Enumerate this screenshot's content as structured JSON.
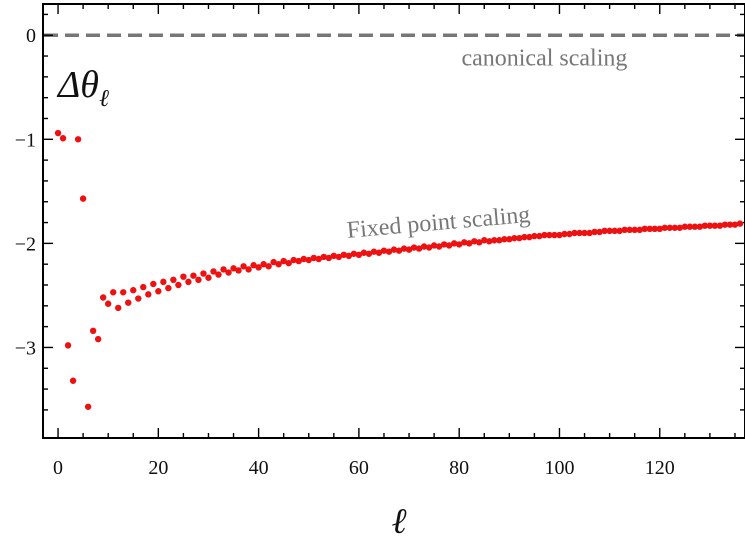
{
  "chart_data": {
    "type": "scatter",
    "title": "",
    "xlabel": "ℓ",
    "ylabel": "Δθ_ℓ",
    "ylabel_main": "Δθ",
    "ylabel_sub": "ℓ",
    "xlim": [
      -3,
      137
    ],
    "ylim": [
      -3.87,
      0.3
    ],
    "xticks": [
      0,
      20,
      40,
      60,
      80,
      100,
      120
    ],
    "xtick_labels": [
      "0",
      "20",
      "40",
      "60",
      "80",
      "100",
      "120"
    ],
    "yticks": [
      0,
      -1,
      -2,
      -3
    ],
    "ytick_labels": [
      "0",
      "−1",
      "−2",
      "−3"
    ],
    "grid": false,
    "reference_line": {
      "y": 0,
      "color": "#777777",
      "style": "dashed",
      "label": "canonical scaling"
    },
    "annotations": [
      {
        "text": "canonical scaling",
        "x": 97,
        "y": -0.29
      },
      {
        "text": "Fixed point scaling",
        "x": 76,
        "y": -1.87,
        "rotation_deg": -5
      }
    ],
    "series": [
      {
        "color": "#ee1111",
        "points": [
          [
            0,
            -0.94
          ],
          [
            1,
            -0.99
          ],
          [
            2,
            -2.98
          ],
          [
            3,
            -3.32
          ],
          [
            4,
            -1.0
          ],
          [
            5,
            -1.57
          ],
          [
            6,
            -3.57
          ],
          [
            7,
            -2.84
          ],
          [
            8,
            -2.92
          ],
          [
            9,
            -2.52
          ],
          [
            10,
            -2.58
          ],
          [
            11,
            -2.47
          ],
          [
            12,
            -2.62
          ],
          [
            13,
            -2.47
          ],
          [
            14,
            -2.57
          ],
          [
            15,
            -2.45
          ],
          [
            16,
            -2.53
          ],
          [
            17,
            -2.42
          ],
          [
            18,
            -2.49
          ],
          [
            19,
            -2.39
          ],
          [
            20,
            -2.46
          ],
          [
            21,
            -2.37
          ],
          [
            22,
            -2.43
          ],
          [
            23,
            -2.35
          ],
          [
            24,
            -2.4
          ],
          [
            25,
            -2.32
          ],
          [
            26,
            -2.37
          ],
          [
            27,
            -2.31
          ],
          [
            28,
            -2.35
          ],
          [
            29,
            -2.29
          ],
          [
            30,
            -2.33
          ],
          [
            31,
            -2.27
          ],
          [
            32,
            -2.3
          ],
          [
            33,
            -2.25
          ],
          [
            34,
            -2.28
          ],
          [
            35,
            -2.24
          ],
          [
            36,
            -2.26
          ],
          [
            37,
            -2.22
          ],
          [
            38,
            -2.25
          ],
          [
            39,
            -2.21
          ],
          [
            40,
            -2.23
          ],
          [
            41,
            -2.2
          ],
          [
            42,
            -2.22
          ],
          [
            43,
            -2.18
          ],
          [
            44,
            -2.2
          ],
          [
            45,
            -2.17
          ],
          [
            46,
            -2.19
          ],
          [
            47,
            -2.16
          ],
          [
            48,
            -2.17
          ],
          [
            49,
            -2.15
          ],
          [
            50,
            -2.16
          ],
          [
            51,
            -2.14
          ],
          [
            52,
            -2.15
          ],
          [
            53,
            -2.13
          ],
          [
            54,
            -2.14
          ],
          [
            55,
            -2.12
          ],
          [
            56,
            -2.13
          ],
          [
            57,
            -2.11
          ],
          [
            58,
            -2.12
          ],
          [
            59,
            -2.1
          ],
          [
            60,
            -2.11
          ],
          [
            61,
            -2.09
          ],
          [
            62,
            -2.1
          ],
          [
            63,
            -2.08
          ],
          [
            64,
            -2.09
          ],
          [
            65,
            -2.07
          ],
          [
            66,
            -2.08
          ],
          [
            67,
            -2.06
          ],
          [
            68,
            -2.07
          ],
          [
            69,
            -2.05
          ],
          [
            70,
            -2.06
          ],
          [
            71,
            -2.04
          ],
          [
            72,
            -2.05
          ],
          [
            73,
            -2.03
          ],
          [
            74,
            -2.04
          ],
          [
            75,
            -2.02
          ],
          [
            76,
            -2.03
          ],
          [
            77,
            -2.01
          ],
          [
            78,
            -2.02
          ],
          [
            79,
            -2.0
          ],
          [
            80,
            -2.01
          ],
          [
            81,
            -1.99
          ],
          [
            82,
            -2.0
          ],
          [
            83,
            -1.98
          ],
          [
            84,
            -1.99
          ],
          [
            85,
            -1.97
          ],
          [
            86,
            -1.98
          ],
          [
            87,
            -1.97
          ],
          [
            88,
            -1.97
          ],
          [
            89,
            -1.96
          ],
          [
            90,
            -1.96
          ],
          [
            91,
            -1.95
          ],
          [
            92,
            -1.95
          ],
          [
            93,
            -1.94
          ],
          [
            94,
            -1.94
          ],
          [
            95,
            -1.93
          ],
          [
            96,
            -1.93
          ],
          [
            97,
            -1.92
          ],
          [
            98,
            -1.92
          ],
          [
            99,
            -1.92
          ],
          [
            100,
            -1.92
          ],
          [
            101,
            -1.91
          ],
          [
            102,
            -1.91
          ],
          [
            103,
            -1.9
          ],
          [
            104,
            -1.9
          ],
          [
            105,
            -1.9
          ],
          [
            106,
            -1.9
          ],
          [
            107,
            -1.89
          ],
          [
            108,
            -1.89
          ],
          [
            109,
            -1.88
          ],
          [
            110,
            -1.88
          ],
          [
            111,
            -1.88
          ],
          [
            112,
            -1.88
          ],
          [
            113,
            -1.87
          ],
          [
            114,
            -1.87
          ],
          [
            115,
            -1.87
          ],
          [
            116,
            -1.87
          ],
          [
            117,
            -1.86
          ],
          [
            118,
            -1.86
          ],
          [
            119,
            -1.86
          ],
          [
            120,
            -1.86
          ],
          [
            121,
            -1.85
          ],
          [
            122,
            -1.85
          ],
          [
            123,
            -1.85
          ],
          [
            124,
            -1.85
          ],
          [
            125,
            -1.84
          ],
          [
            126,
            -1.84
          ],
          [
            127,
            -1.84
          ],
          [
            128,
            -1.84
          ],
          [
            129,
            -1.83
          ],
          [
            130,
            -1.83
          ],
          [
            131,
            -1.83
          ],
          [
            132,
            -1.83
          ],
          [
            133,
            -1.82
          ],
          [
            134,
            -1.82
          ],
          [
            135,
            -1.82
          ],
          [
            136,
            -1.81
          ]
        ]
      }
    ]
  }
}
